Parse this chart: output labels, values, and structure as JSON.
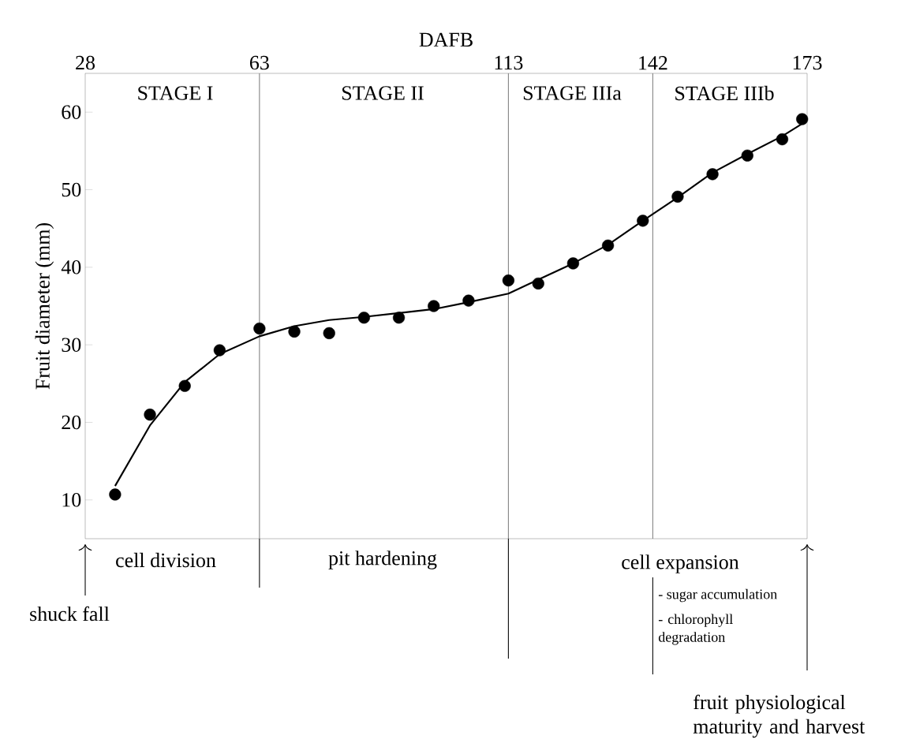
{
  "chart_data": {
    "type": "scatter",
    "xlabel": "DAFB",
    "ylabel": "Fruit diameter (mm)",
    "xlim": [
      28,
      173
    ],
    "xticks": [
      28,
      63,
      113,
      142,
      173
    ],
    "ylim": [
      5,
      65
    ],
    "yticks": [
      10,
      20,
      30,
      40,
      50,
      60
    ],
    "series": [
      {
        "marker": "circle",
        "color": "#000000",
        "x": [
          34,
          41,
          48,
          55,
          63,
          70,
          77,
          84,
          91,
          98,
          105,
          113,
          119,
          126,
          133,
          140,
          147,
          154,
          161,
          168,
          172
        ],
        "values": [
          10.7,
          21.0,
          24.7,
          29.3,
          32.1,
          31.7,
          31.5,
          33.5,
          33.5,
          35.0,
          35.7,
          38.3,
          37.9,
          40.5,
          42.8,
          46.0,
          49.1,
          52.0,
          54.4,
          56.5,
          59.1
        ]
      },
      {
        "type": "line",
        "color": "#000000",
        "x": [
          34,
          41,
          48,
          55,
          63,
          70,
          77,
          84,
          91,
          98,
          105,
          113,
          119,
          126,
          133,
          140,
          147,
          154,
          161,
          168,
          172
        ],
        "values": [
          11.8,
          19.6,
          25.2,
          28.8,
          31.1,
          32.4,
          33.2,
          33.6,
          34.1,
          34.6,
          35.5,
          36.6,
          38.4,
          40.5,
          42.9,
          46.0,
          49.0,
          52.2,
          54.6,
          56.9,
          58.5
        ]
      }
    ],
    "ref_lines": [
      {
        "axis": "x",
        "value": 63,
        "color": "#808080"
      },
      {
        "axis": "x",
        "value": 113,
        "color": "#808080"
      },
      {
        "axis": "x",
        "value": 142,
        "color": "#808080"
      }
    ],
    "annotations": [
      "STAGE I",
      "STAGE II",
      "STAGE IIIa",
      "STAGE IIIb",
      "cell division",
      "pit hardening",
      "cell expansion",
      "- sugar accumulation",
      "- chlorophyll degradation",
      "shuck fall",
      "fruit physiological maturity and harvest"
    ]
  }
}
